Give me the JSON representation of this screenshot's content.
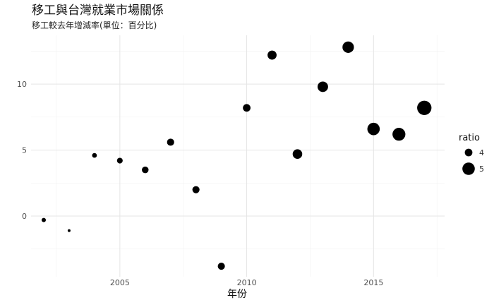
{
  "chart_data": {
    "type": "scatter",
    "title": "移工與台灣就業市場關係",
    "subtitle": "移工較去年增減率(單位：百分比)",
    "xlabel": "年份",
    "ylabel": "",
    "x_ticks": [
      2005,
      2010,
      2015
    ],
    "y_ticks": [
      0,
      5,
      10
    ],
    "xlim": [
      2001.5,
      2017.8
    ],
    "ylim": [
      -4.6,
      13.7
    ],
    "grid": true,
    "legend": {
      "title": "ratio",
      "position": "right",
      "entries": [
        {
          "label": "4",
          "size": 4
        },
        {
          "label": "5",
          "size": 5
        }
      ]
    },
    "points": [
      {
        "x": 2002,
        "y": -0.3,
        "ratio": 3.3
      },
      {
        "x": 2003,
        "y": -1.1,
        "ratio": 3.0
      },
      {
        "x": 2004,
        "y": 4.6,
        "ratio": 3.4
      },
      {
        "x": 2005,
        "y": 4.2,
        "ratio": 3.6
      },
      {
        "x": 2006,
        "y": 3.5,
        "ratio": 3.8
      },
      {
        "x": 2007,
        "y": 5.6,
        "ratio": 3.9
      },
      {
        "x": 2008,
        "y": 2.0,
        "ratio": 3.9
      },
      {
        "x": 2009,
        "y": -3.8,
        "ratio": 3.9
      },
      {
        "x": 2010,
        "y": 8.2,
        "ratio": 4.0
      },
      {
        "x": 2011,
        "y": 12.2,
        "ratio": 4.3
      },
      {
        "x": 2012,
        "y": 4.7,
        "ratio": 4.4
      },
      {
        "x": 2013,
        "y": 9.8,
        "ratio": 4.6
      },
      {
        "x": 2014,
        "y": 12.8,
        "ratio": 4.8
      },
      {
        "x": 2015,
        "y": 6.6,
        "ratio": 5.0
      },
      {
        "x": 2016,
        "y": 6.2,
        "ratio": 5.1
      },
      {
        "x": 2017,
        "y": 8.2,
        "ratio": 5.4
      }
    ]
  }
}
